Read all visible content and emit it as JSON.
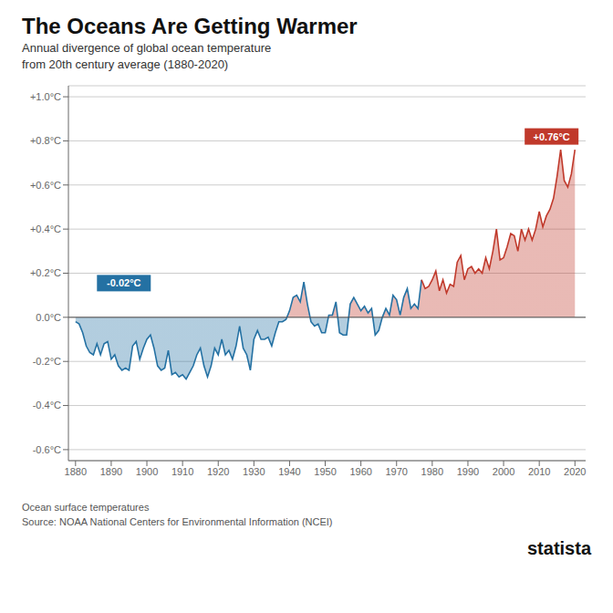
{
  "chart_data": {
    "type": "area",
    "title": "The Oceans Are Getting Warmer",
    "subtitle": "Annual divergence of global ocean temperature\nfrom 20th century average (1880-2020)",
    "source": "Ocean surface temperatures\nSource: NOAA National Centers for Environmental Information (NCEI)",
    "brand": "statista",
    "xlim": [
      1878,
      2023
    ],
    "ylim": [
      -0.65,
      1.05
    ],
    "xticks": [
      1880,
      1890,
      1900,
      1910,
      1920,
      1930,
      1940,
      1950,
      1960,
      1970,
      1980,
      1990,
      2000,
      2010,
      2020
    ],
    "yticks": [
      {
        "value": -0.6,
        "label": "-0.6°C"
      },
      {
        "value": -0.4,
        "label": "-0.4°C"
      },
      {
        "value": -0.2,
        "label": "-0.2°C"
      },
      {
        "value": 0.0,
        "label": "0.0°C"
      },
      {
        "value": 0.2,
        "label": "+0.2°C"
      },
      {
        "value": 0.4,
        "label": "+0.4°C"
      },
      {
        "value": 0.6,
        "label": "+0.6°C"
      },
      {
        "value": 0.8,
        "label": "+0.8°C"
      },
      {
        "value": 1.0,
        "label": "+1.0°C"
      }
    ],
    "grid": true,
    "x": [
      1880,
      1881,
      1882,
      1883,
      1884,
      1885,
      1886,
      1887,
      1888,
      1889,
      1890,
      1891,
      1892,
      1893,
      1894,
      1895,
      1896,
      1897,
      1898,
      1899,
      1900,
      1901,
      1902,
      1903,
      1904,
      1905,
      1906,
      1907,
      1908,
      1909,
      1910,
      1911,
      1912,
      1913,
      1914,
      1915,
      1916,
      1917,
      1918,
      1919,
      1920,
      1921,
      1922,
      1923,
      1924,
      1925,
      1926,
      1927,
      1928,
      1929,
      1930,
      1931,
      1932,
      1933,
      1934,
      1935,
      1936,
      1937,
      1938,
      1939,
      1940,
      1941,
      1942,
      1943,
      1944,
      1945,
      1946,
      1947,
      1948,
      1949,
      1950,
      1951,
      1952,
      1953,
      1954,
      1955,
      1956,
      1957,
      1958,
      1959,
      1960,
      1961,
      1962,
      1963,
      1964,
      1965,
      1966,
      1967,
      1968,
      1969,
      1970,
      1971,
      1972,
      1973,
      1974,
      1975,
      1976,
      1977,
      1978,
      1979,
      1980,
      1981,
      1982,
      1983,
      1984,
      1985,
      1986,
      1987,
      1988,
      1989,
      1990,
      1991,
      1992,
      1993,
      1994,
      1995,
      1996,
      1997,
      1998,
      1999,
      2000,
      2001,
      2002,
      2003,
      2004,
      2005,
      2006,
      2007,
      2008,
      2009,
      2010,
      2011,
      2012,
      2013,
      2014,
      2015,
      2016,
      2017,
      2018,
      2019,
      2020
    ],
    "series": [
      {
        "color": "#2471a3",
        "values": [
          -0.02,
          -0.03,
          -0.07,
          -0.13,
          -0.16,
          -0.17,
          -0.12,
          -0.17,
          -0.12,
          -0.11,
          -0.19,
          -0.17,
          -0.22,
          -0.24,
          -0.23,
          -0.24,
          -0.13,
          -0.11,
          -0.19,
          -0.14,
          -0.1,
          -0.08,
          -0.14,
          -0.22,
          -0.24,
          -0.23,
          -0.15,
          -0.26,
          -0.25,
          -0.27,
          -0.26,
          -0.28,
          -0.25,
          -0.22,
          -0.17,
          -0.14,
          -0.22,
          -0.27,
          -0.22,
          -0.14,
          -0.17,
          -0.1,
          -0.17,
          -0.15,
          -0.19,
          -0.13,
          -0.04,
          -0.14,
          -0.17,
          -0.24,
          -0.1,
          -0.06,
          -0.1,
          -0.1,
          -0.09,
          -0.13,
          -0.07,
          -0.02,
          -0.02,
          -0.01,
          0.03,
          0.09,
          0.1,
          0.07,
          0.16,
          0.06,
          -0.02,
          -0.04,
          -0.03,
          -0.07,
          -0.07,
          0.01,
          0.01,
          0.07,
          -0.07,
          -0.08,
          -0.08,
          0.06,
          0.09,
          0.06,
          0.03,
          0.05,
          0.02,
          0.04,
          -0.08,
          -0.06,
          0.0,
          0.04,
          0.01,
          0.1,
          0.08,
          0.01,
          0.09,
          0.13,
          0.04,
          0.06,
          0.04,
          0.17,
          null,
          null,
          null,
          null,
          null,
          null,
          null,
          null,
          null,
          null,
          null,
          null,
          null,
          null,
          null,
          null,
          null,
          null,
          null,
          null,
          null,
          null,
          null,
          null,
          null,
          null,
          null,
          null,
          null,
          null,
          null,
          null,
          null,
          null,
          null,
          null,
          null,
          null,
          null,
          null,
          null,
          null,
          null
        ]
      },
      {
        "color": "#c0392b",
        "values": [
          null,
          null,
          null,
          null,
          null,
          null,
          null,
          null,
          null,
          null,
          null,
          null,
          null,
          null,
          null,
          null,
          null,
          null,
          null,
          null,
          null,
          null,
          null,
          null,
          null,
          null,
          null,
          null,
          null,
          null,
          null,
          null,
          null,
          null,
          null,
          null,
          null,
          null,
          null,
          null,
          null,
          null,
          null,
          null,
          null,
          null,
          null,
          null,
          null,
          null,
          null,
          null,
          null,
          null,
          null,
          null,
          null,
          null,
          null,
          null,
          null,
          null,
          null,
          null,
          null,
          null,
          null,
          null,
          null,
          null,
          null,
          null,
          null,
          null,
          null,
          null,
          null,
          null,
          null,
          null,
          null,
          null,
          null,
          null,
          null,
          null,
          null,
          null,
          null,
          null,
          null,
          null,
          null,
          null,
          null,
          null,
          null,
          0.17,
          0.13,
          0.14,
          0.17,
          0.21,
          0.12,
          0.17,
          0.11,
          0.15,
          0.14,
          0.25,
          0.28,
          0.17,
          0.22,
          0.23,
          0.2,
          0.22,
          0.2,
          0.27,
          0.22,
          0.3,
          0.4,
          0.26,
          0.27,
          0.32,
          0.38,
          0.37,
          0.3,
          0.4,
          0.35,
          0.4,
          0.35,
          0.4,
          0.48,
          0.41,
          0.46,
          0.49,
          0.54,
          0.64,
          0.76,
          0.62,
          0.59,
          0.65,
          0.76
        ]
      }
    ],
    "annotations": [
      {
        "text": "-0.02°C",
        "x": 1886,
        "y": 0.155,
        "color": "#2471a3"
      },
      {
        "text": "+0.76°C",
        "x": 2021,
        "y": 0.82,
        "color": "#c0392b"
      }
    ]
  }
}
